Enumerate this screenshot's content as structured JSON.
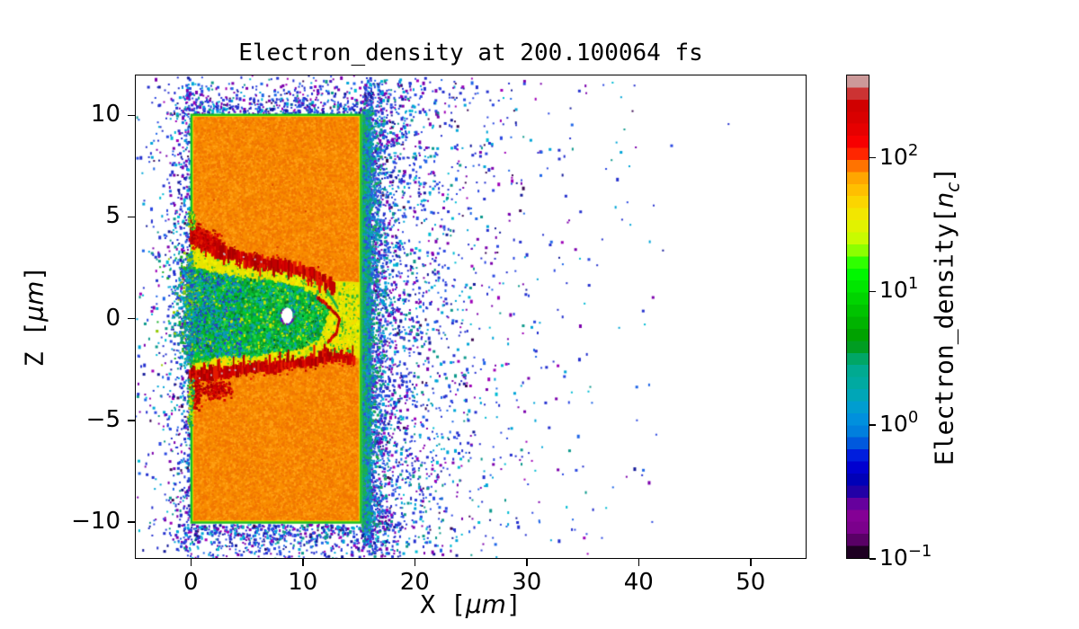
{
  "title": {
    "text": "Electron_density at 200.100064 fs"
  },
  "axes": {
    "xlabel": {
      "pre": "X [",
      "italic": "μm",
      "post": "]"
    },
    "ylabel": {
      "pre": "Z [",
      "italic": "μm",
      "post": "]"
    },
    "xlim": [
      -5,
      55
    ],
    "ylim": [
      -11.81,
      12.0
    ],
    "xticks": {
      "values": [
        0,
        10,
        20,
        30,
        40,
        50
      ],
      "labels": [
        "0",
        "10",
        "20",
        "30",
        "40",
        "50"
      ]
    },
    "yticks": {
      "values": [
        -10,
        -5,
        0,
        5,
        10
      ],
      "labels": [
        "−10",
        "−5",
        "0",
        "5",
        "10"
      ]
    }
  },
  "colorbar": {
    "label": {
      "pre": "Electron_density[",
      "italic": "n",
      "sub": "c",
      "post": "]"
    },
    "scale": "log",
    "vmin": 0.1,
    "vmax": 420,
    "ticks": [
      {
        "value": 100,
        "base": "10",
        "exp": "2"
      },
      {
        "value": 10,
        "base": "10",
        "exp": "1"
      },
      {
        "value": 1,
        "base": "10",
        "exp": "0"
      },
      {
        "value": 0.1,
        "base": "10",
        "exp": "−1"
      }
    ],
    "colormap": {
      "name": "nipy_spectral",
      "bands": 40,
      "stops": [
        "#000000",
        "#770088",
        "#880099",
        "#0000aa",
        "#0000dd",
        "#0077dd",
        "#0099dd",
        "#00aaaa",
        "#00aa88",
        "#009900",
        "#00bb00",
        "#00dd00",
        "#00ff00",
        "#bbff00",
        "#eeee00",
        "#ffcc00",
        "#ff9900",
        "#ff0000",
        "#dd0000",
        "#cc0000",
        "#cccccc"
      ]
    }
  },
  "chart_data": {
    "type": "heatmap",
    "title": "Electron_density at 200.100064 fs",
    "xlabel": "X [μm]",
    "ylabel": "Z [μm]",
    "xlim": [
      -5,
      55
    ],
    "ylim": [
      -11.81,
      12.0
    ],
    "time_fs": 200.100064,
    "value_label": "Electron_density[n_c]",
    "value_scale": "log",
    "vmin": 0.1,
    "vmax": 420,
    "features": {
      "target_slab": {
        "x": [
          0,
          15.25
        ],
        "z": [
          -10.05,
          10.05
        ],
        "density_nc": 100,
        "base_color": "#f98c00",
        "noise_colors": [
          "#ef7d00",
          "#ffa013",
          "#f27500"
        ],
        "fleck_color": "#d94400",
        "fleck_count": 8,
        "edge_inner_color": "#d8e400",
        "edge_color": "#17c022"
      },
      "back_surface_strip": {
        "x": [
          15.28,
          16.45
        ],
        "z": [
          -10.45,
          10.3
        ],
        "base_colors": [
          "#1fae4e",
          "#0ca189",
          "#0e95bb"
        ],
        "noise_colors": [
          [
            "#1db24a",
            18
          ],
          [
            "#0aa188",
            25
          ],
          [
            "#0b9cc8",
            25
          ],
          [
            "#2a50dd",
            20
          ],
          [
            "#2f7de0",
            12
          ]
        ],
        "noise_n": 2400
      },
      "channel": {
        "upper_boundary": [
          [
            0,
            4.35
          ],
          [
            1.5,
            3.6
          ],
          [
            3,
            3.15
          ],
          [
            5,
            2.95
          ],
          [
            7,
            2.7
          ],
          [
            9,
            2.45
          ],
          [
            10.5,
            2.2
          ],
          [
            11.8,
            1.95
          ],
          [
            13,
            1.85
          ],
          [
            15.1,
            1.8
          ]
        ],
        "lower_boundary": [
          [
            0,
            -2.95
          ],
          [
            2,
            -2.7
          ],
          [
            4,
            -2.55
          ],
          [
            6,
            -2.45
          ],
          [
            8,
            -2.3
          ],
          [
            10,
            -2.1
          ],
          [
            12,
            -1.9
          ],
          [
            13.5,
            -1.85
          ],
          [
            15.1,
            -1.95
          ]
        ],
        "fill_color": "#e5e300",
        "outer_noise": [
          [
            "#e8e600",
            40
          ],
          [
            "#f2f200",
            20
          ],
          [
            "#ffd800",
            15
          ],
          [
            "#bfdc00",
            10
          ],
          [
            "#2fba32",
            15
          ]
        ],
        "core_upper": [
          [
            0,
            2.6
          ],
          [
            2,
            2.3
          ],
          [
            4,
            2.1
          ],
          [
            6,
            1.95
          ],
          [
            8,
            1.85
          ],
          [
            10,
            1.55
          ],
          [
            11.3,
            1.2
          ],
          [
            12.5,
            0.5
          ]
        ],
        "core_lower": [
          [
            0,
            -2.25
          ],
          [
            2,
            -2.0
          ],
          [
            4,
            -1.9
          ],
          [
            6,
            -1.85
          ],
          [
            8,
            -1.7
          ],
          [
            10,
            -1.5
          ],
          [
            11.5,
            -1.05
          ],
          [
            12.5,
            0.5
          ]
        ],
        "core_color": "#0db32b",
        "core_noise": [
          [
            "#00c838",
            25
          ],
          [
            "#0a9a26",
            20
          ],
          [
            "#27d54a",
            15
          ],
          [
            "#0aa3ad",
            18
          ],
          [
            "#077f8c",
            7
          ],
          [
            "#cde400",
            10
          ],
          [
            "#056e22",
            5
          ]
        ],
        "noise_n": 5200,
        "mix_cluster": {
          "x": [
            0,
            4.5
          ],
          "z": [
            -1.9,
            2.2
          ],
          "n": 550,
          "colors": [
            "#0aa3ad",
            "#0b8fd0",
            "#2a3ad0"
          ]
        },
        "tip_streak": {
          "from": [
            12.2,
            1.35
          ],
          "to": [
            13.1,
            0.55
          ],
          "color": "#1db24a"
        },
        "hole": {
          "x": 8.6,
          "z": 0.15,
          "rx": 0.52,
          "rz": 0.4,
          "color": "#ffffff",
          "rim_colors": [
            "#0aa3ad",
            "#2a3ad0",
            "#8800aa"
          ]
        }
      },
      "filaments": {
        "colors": [
          "#d60000",
          "#c00000",
          "#e51a00",
          "#a80000"
        ],
        "speck_color": "#c8b6b6",
        "speck_count_upper": 5,
        "speck_count_lower": 7,
        "upper_band": {
          "points": [
            [
              0,
              4.3
            ],
            [
              1,
              3.85
            ],
            [
              2,
              3.5
            ],
            [
              3,
              3.22
            ],
            [
              4.5,
              3.02
            ],
            [
              6,
              2.82
            ],
            [
              7.5,
              2.65
            ],
            [
              9,
              2.5
            ],
            [
              10.3,
              2.28
            ],
            [
              11.4,
              2.05
            ],
            [
              12.3,
              1.75
            ],
            [
              12.9,
              1.5
            ]
          ],
          "thickness": 0.5,
          "spike_dir": -1
        },
        "lower_band": {
          "points": [
            [
              0,
              -2.95
            ],
            [
              2,
              -2.7
            ],
            [
              4,
              -2.55
            ],
            [
              6,
              -2.45
            ],
            [
              8,
              -2.3
            ],
            [
              10,
              -2.12
            ],
            [
              12,
              -1.95
            ],
            [
              13.5,
              -1.88
            ],
            [
              14.6,
              -1.95
            ]
          ],
          "thickness": 0.42,
          "spike_dir": 1
        },
        "tip_arc": {
          "points": [
            [
              11.3,
              1.05
            ],
            [
              12.3,
              0.6
            ],
            [
              13.3,
              0.0
            ],
            [
              13.0,
              -0.7
            ],
            [
              12.2,
              -1.2
            ]
          ],
          "thickness": 0.18
        },
        "face_blobs": [
          {
            "x": 1.3,
            "z": 3.9,
            "rx": 1.5,
            "rz": 0.55
          },
          {
            "x": 0.45,
            "z": 4.3,
            "rx": 0.55,
            "rz": 0.45
          },
          {
            "x": 0.55,
            "z": -3.6,
            "rx": 0.5,
            "rz": 1.0
          },
          {
            "x": 2.3,
            "z": -3.55,
            "rx": 1.6,
            "rz": 0.5
          }
        ]
      },
      "mouth_plume": {
        "x_mean": 0.55,
        "z": [
          -2.3,
          3.3
        ],
        "n": 520,
        "colors": [
          [
            "#0d9a8c",
            28
          ],
          [
            "#00a8cc",
            22
          ],
          [
            "#17b02c",
            20
          ],
          [
            "#2a3ad0",
            15
          ],
          [
            "#9acc00",
            15
          ]
        ]
      },
      "face_patches": [
        {
          "x": [
            -0.35,
            0.25
          ],
          "z": [
            -5.3,
            -2.9
          ],
          "n": 110,
          "colors": [
            [
              "#17b02c",
              45
            ],
            [
              "#cde400",
              35
            ],
            [
              "#0d9a8c",
              20
            ]
          ]
        },
        {
          "x": [
            -0.3,
            0.3
          ],
          "z": [
            4.4,
            5.3
          ],
          "n": 60,
          "colors": [
            [
              "#17b02c",
              50
            ],
            [
              "#cde400",
              50
            ]
          ]
        }
      ],
      "scatter_dots": {
        "palette": [
          [
            "#2531cf",
            24
          ],
          [
            "#2c49e2",
            16
          ],
          [
            "#1f66e8",
            7
          ],
          [
            "#00a5d8",
            12
          ],
          [
            "#0d998c",
            8
          ],
          [
            "#7c00ad",
            14
          ],
          [
            "#9e00b8",
            6
          ],
          [
            "#141a99",
            6
          ],
          [
            "#3b0a52",
            3
          ],
          [
            "#00bcd4",
            4
          ]
        ],
        "clouds": [
          {
            "name": "right-far",
            "n": 2300,
            "x": {
              "exp": [
                15.4,
                4.6,
                1
              ]
            },
            "z": {
              "uni": [
                -11.7,
                11.9
              ]
            }
          },
          {
            "name": "right-near",
            "n": 1500,
            "x": {
              "exp": [
                15.3,
                1.35,
                1
              ]
            },
            "z": {
              "uni": [
                -11.2,
                11.6
              ]
            }
          },
          {
            "name": "left",
            "n": 640,
            "x": {
              "exp": [
                -0.15,
                1.8,
                -1
              ]
            },
            "z": {
              "uni": [
                -11.4,
                11.9
              ]
            }
          },
          {
            "name": "left-near",
            "n": 300,
            "x": {
              "exp": [
                -0.1,
                0.55,
                -1
              ]
            },
            "z": {
              "uni": [
                -10.8,
                11.2
              ]
            }
          },
          {
            "name": "top-fringe",
            "n": 620,
            "x": {
              "uni": [
                -0.7,
                16.1
              ]
            },
            "z": {
              "exp": [
                10.08,
                0.85,
                1
              ]
            }
          },
          {
            "name": "bottom-fringe",
            "n": 780,
            "x": {
              "uni": [
                -0.9,
                16.3
              ]
            },
            "z": {
              "exp": [
                -10.08,
                0.95,
                -1
              ]
            }
          },
          {
            "name": "ambient",
            "n": 240,
            "x": {
              "uni": [
                -4.9,
                41.5
              ]
            },
            "z": {
              "uni": [
                -11.7,
                11.9
              ]
            }
          }
        ]
      }
    }
  }
}
